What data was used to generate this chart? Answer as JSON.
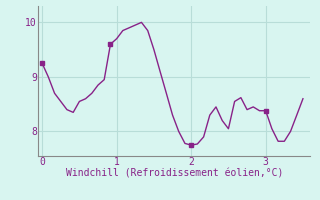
{
  "xlabel": "Windchill (Refroidissement éolien,°C)",
  "background_color": "#d8f5f0",
  "line_color": "#882288",
  "marker_color": "#882288",
  "grid_color": "#b8ddd8",
  "axis_color": "#888888",
  "tick_label_color": "#882288",
  "xlabel_color": "#882288",
  "xlim": [
    -0.05,
    3.6
  ],
  "ylim": [
    7.55,
    10.3
  ],
  "yticks": [
    8,
    9,
    10
  ],
  "xticks": [
    0,
    1,
    2,
    3
  ],
  "x": [
    0.0,
    0.083,
    0.167,
    0.25,
    0.333,
    0.417,
    0.5,
    0.583,
    0.667,
    0.75,
    0.833,
    0.917,
    1.0,
    1.083,
    1.167,
    1.25,
    1.333,
    1.417,
    1.5,
    1.583,
    1.667,
    1.75,
    1.833,
    1.917,
    2.0,
    2.083,
    2.167,
    2.25,
    2.333,
    2.417,
    2.5,
    2.583,
    2.667,
    2.75,
    2.833,
    2.917,
    3.0,
    3.083,
    3.167,
    3.25,
    3.333,
    3.417,
    3.5
  ],
  "y": [
    9.25,
    9.0,
    8.7,
    8.55,
    8.4,
    8.35,
    8.55,
    8.6,
    8.7,
    8.85,
    8.95,
    9.6,
    9.7,
    9.85,
    9.9,
    9.95,
    10.0,
    9.85,
    9.5,
    9.1,
    8.7,
    8.3,
    8.0,
    7.78,
    7.75,
    7.77,
    7.9,
    8.3,
    8.45,
    8.2,
    8.05,
    8.55,
    8.62,
    8.4,
    8.45,
    8.38,
    8.38,
    8.05,
    7.82,
    7.82,
    8.0,
    8.3,
    8.6
  ],
  "marked_points_x": [
    0.0,
    0.917,
    2.0,
    3.0
  ],
  "marked_points_y": [
    9.25,
    9.6,
    7.75,
    8.38
  ]
}
